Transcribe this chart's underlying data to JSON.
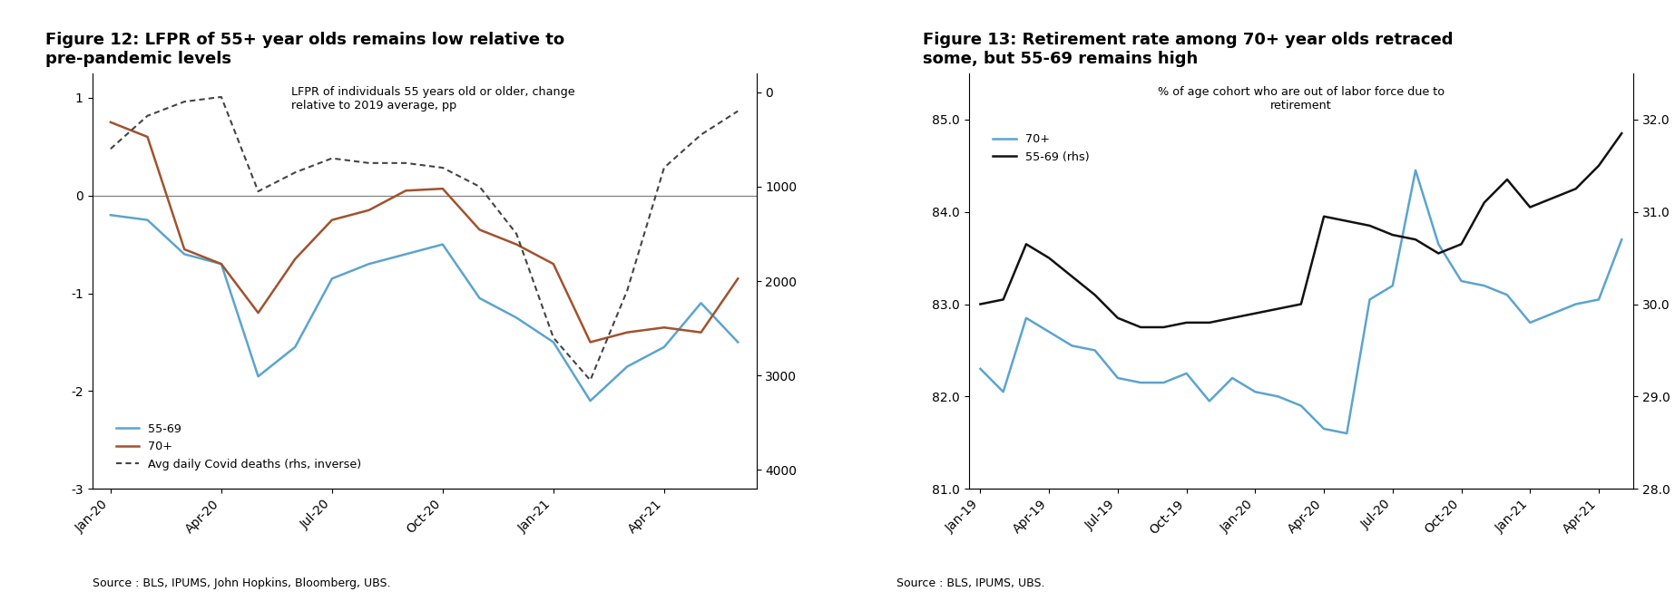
{
  "fig12": {
    "title": "Figure 12: LFPR of 55+ year olds remains low relative to\npre-pandemic levels",
    "subtitle": "LFPR of individuals 55 years old or older, change\nrelative to 2019 average, pp",
    "source": "Source : BLS, IPUMS, John Hopkins, Bloomberg, UBS.",
    "x_labels": [
      "Jan-20",
      "Apr-20",
      "Jul-20",
      "Oct-20",
      "Jan-21",
      "Apr-21"
    ],
    "x_indices": [
      0,
      3,
      6,
      9,
      12,
      15
    ],
    "ylim_left": [
      -3.0,
      1.25
    ],
    "ylim_right": [
      4200,
      -200
    ],
    "yticks_left": [
      1.0,
      0.0,
      -1.0,
      -2.0,
      -3.0
    ],
    "yticks_right": [
      0,
      1000,
      2000,
      3000,
      4000
    ],
    "line_5569": {
      "x": [
        0,
        1,
        2,
        3,
        4,
        5,
        6,
        7,
        8,
        9,
        10,
        11,
        12,
        13,
        14,
        15,
        16,
        17
      ],
      "y": [
        -0.2,
        -0.25,
        -0.6,
        -0.7,
        -1.85,
        -1.55,
        -0.85,
        -0.7,
        -0.6,
        -0.5,
        -1.05,
        -1.25,
        -1.5,
        -2.1,
        -1.75,
        -1.55,
        -1.1,
        -1.5
      ],
      "color": "#5ba4cf",
      "label": "55-69"
    },
    "line_70plus": {
      "x": [
        0,
        1,
        2,
        3,
        4,
        5,
        6,
        7,
        8,
        9,
        10,
        11,
        12,
        13,
        14,
        15,
        16,
        17
      ],
      "y": [
        0.75,
        0.6,
        -0.55,
        -0.7,
        -1.2,
        -0.65,
        -0.25,
        -0.15,
        0.05,
        0.07,
        -0.35,
        -0.5,
        -0.7,
        -1.5,
        -1.4,
        -1.35,
        -1.4,
        -0.85
      ],
      "color": "#a0522d",
      "label": "70+"
    },
    "line_covid": {
      "x": [
        0,
        1,
        2,
        3,
        4,
        5,
        6,
        7,
        8,
        9,
        10,
        11,
        12,
        13,
        14,
        15,
        16,
        17
      ],
      "y": [
        600,
        250,
        100,
        50,
        1050,
        850,
        700,
        750,
        750,
        800,
        1000,
        1500,
        2600,
        3050,
        2100,
        800,
        450,
        200
      ],
      "color": "#444444",
      "label": "Avg daily Covid deaths (rhs, inverse)"
    },
    "n_points": 18
  },
  "fig13": {
    "title": "Figure 13: Retirement rate among 70+ year olds retraced\nsome, but 55-69 remains high",
    "subtitle": "% of age cohort who are out of labor force due to\nretirement",
    "source": "Source : BLS, IPUMS, UBS.",
    "x_labels": [
      "Jan-19",
      "Apr-19",
      "Jul-19",
      "Oct-19",
      "Jan-20",
      "Apr-20",
      "Jul-20",
      "Oct-20",
      "Jan-21",
      "Apr-21"
    ],
    "x_indices": [
      0,
      3,
      6,
      9,
      12,
      15,
      18,
      21,
      24,
      27
    ],
    "ylim_left": [
      81.0,
      85.5
    ],
    "ylim_right": [
      28.0,
      32.5
    ],
    "yticks_left": [
      81.0,
      82.0,
      83.0,
      84.0,
      85.0
    ],
    "yticks_right": [
      28.0,
      29.0,
      30.0,
      31.0,
      32.0
    ],
    "line_70plus": {
      "x": [
        0,
        1,
        2,
        3,
        4,
        5,
        6,
        7,
        8,
        9,
        10,
        11,
        12,
        13,
        14,
        15,
        16,
        17,
        18,
        19,
        20,
        21,
        22,
        23,
        24,
        25,
        26,
        27,
        28
      ],
      "y": [
        82.3,
        82.05,
        82.85,
        82.7,
        82.55,
        82.5,
        82.2,
        82.15,
        82.15,
        82.25,
        81.95,
        82.2,
        82.05,
        82.0,
        81.9,
        81.65,
        81.6,
        83.05,
        83.2,
        84.45,
        83.65,
        83.25,
        83.2,
        83.1,
        82.8,
        82.9,
        83.0,
        83.05,
        83.7
      ],
      "color": "#5ba4cf",
      "label": "70+"
    },
    "line_5569": {
      "x": [
        0,
        1,
        2,
        3,
        4,
        5,
        6,
        7,
        8,
        9,
        10,
        11,
        12,
        13,
        14,
        15,
        16,
        17,
        18,
        19,
        20,
        21,
        22,
        23,
        24,
        25,
        26,
        27,
        28
      ],
      "y": [
        30.0,
        30.05,
        30.65,
        30.5,
        30.3,
        30.1,
        29.85,
        29.75,
        29.75,
        29.8,
        29.8,
        29.85,
        29.9,
        29.95,
        30.0,
        30.95,
        30.9,
        30.85,
        30.75,
        30.7,
        30.55,
        30.65,
        31.1,
        31.35,
        31.05,
        31.15,
        31.25,
        31.5,
        31.85
      ],
      "color": "#111111",
      "label": "55-69 (rhs)"
    },
    "n_points": 29
  }
}
